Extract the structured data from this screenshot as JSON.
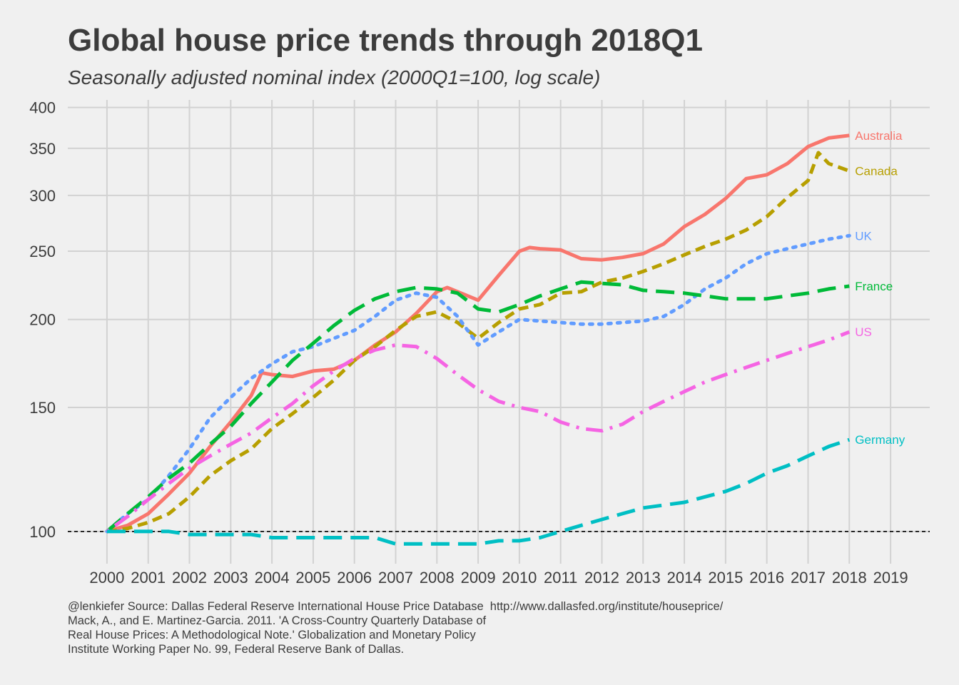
{
  "title": "Global house price trends through 2018Q1",
  "subtitle": "Seasonally adjusted nominal index (2000Q1=100, log scale)",
  "caption": [
    "@lenkiefer Source: Dallas Federal Reserve International House Price Database  http://www.dallasfed.org/institute/houseprice/",
    "Mack, A., and E. Martinez-Garcia. 2011. 'A Cross-Country Quarterly Database of",
    "Real House Prices: A Methodological Note.' Globalization and Monetary Policy",
    "Institute Working Paper No. 99, Federal Reserve Bank of Dallas."
  ],
  "chart_data": {
    "type": "line",
    "title": "Global house price trends through 2018Q1",
    "subtitle": "Seasonally adjusted nominal index (2000Q1=100, log scale)",
    "xlabel": "",
    "ylabel": "",
    "y_scale": "log",
    "xlim": [
      2000,
      2019
    ],
    "ylim": [
      90,
      410
    ],
    "x_ticks": [
      2000,
      2001,
      2002,
      2003,
      2004,
      2005,
      2006,
      2007,
      2008,
      2009,
      2010,
      2011,
      2012,
      2013,
      2014,
      2015,
      2016,
      2017,
      2018,
      2019
    ],
    "y_ticks": [
      100,
      150,
      200,
      250,
      300,
      350,
      400
    ],
    "grid": true,
    "legend": "direct labels at line ends",
    "reference_line": {
      "y": 100,
      "style": "dashed",
      "color": "#000000"
    },
    "series": [
      {
        "name": "Australia",
        "color": "#f8766d",
        "dash": "solid",
        "points": [
          [
            2000,
            100
          ],
          [
            2000.5,
            102
          ],
          [
            2001,
            106
          ],
          [
            2001.5,
            113
          ],
          [
            2002,
            121
          ],
          [
            2002.5,
            132
          ],
          [
            2003,
            143
          ],
          [
            2003.5,
            156
          ],
          [
            2003.75,
            168
          ],
          [
            2004,
            167
          ],
          [
            2004.5,
            166
          ],
          [
            2005,
            169
          ],
          [
            2005.5,
            170
          ],
          [
            2006,
            175
          ],
          [
            2006.5,
            184
          ],
          [
            2007,
            192
          ],
          [
            2007.5,
            204
          ],
          [
            2008,
            219
          ],
          [
            2008.25,
            222
          ],
          [
            2008.5,
            219
          ],
          [
            2009,
            213
          ],
          [
            2009.5,
            231
          ],
          [
            2010,
            250
          ],
          [
            2010.25,
            253
          ],
          [
            2010.5,
            252
          ],
          [
            2011,
            251
          ],
          [
            2011.5,
            244
          ],
          [
            2012,
            243
          ],
          [
            2012.5,
            245
          ],
          [
            2013,
            248
          ],
          [
            2013.5,
            256
          ],
          [
            2014,
            271
          ],
          [
            2014.5,
            282
          ],
          [
            2015,
            297
          ],
          [
            2015.5,
            317
          ],
          [
            2016,
            321
          ],
          [
            2016.5,
            333
          ],
          [
            2017,
            352
          ],
          [
            2017.5,
            362
          ],
          [
            2018,
            365
          ]
        ]
      },
      {
        "name": "Canada",
        "color": "#b79f00",
        "dash": "dashed",
        "points": [
          [
            2000,
            100
          ],
          [
            2000.5,
            101
          ],
          [
            2001,
            103
          ],
          [
            2001.5,
            106
          ],
          [
            2002,
            112
          ],
          [
            2002.5,
            120
          ],
          [
            2003,
            126
          ],
          [
            2003.5,
            131
          ],
          [
            2004,
            140
          ],
          [
            2004.5,
            147
          ],
          [
            2005,
            155
          ],
          [
            2005.5,
            164
          ],
          [
            2006,
            175
          ],
          [
            2006.5,
            183
          ],
          [
            2007,
            193
          ],
          [
            2007.5,
            202
          ],
          [
            2008,
            205
          ],
          [
            2008.5,
            198
          ],
          [
            2009,
            188
          ],
          [
            2009.5,
            198
          ],
          [
            2010,
            207
          ],
          [
            2010.5,
            210
          ],
          [
            2011,
            218
          ],
          [
            2011.5,
            219
          ],
          [
            2012,
            226
          ],
          [
            2012.5,
            229
          ],
          [
            2013,
            234
          ],
          [
            2013.5,
            240
          ],
          [
            2014,
            247
          ],
          [
            2014.5,
            254
          ],
          [
            2015,
            260
          ],
          [
            2015.5,
            268
          ],
          [
            2016,
            280
          ],
          [
            2016.5,
            298
          ],
          [
            2017,
            315
          ],
          [
            2017.25,
            345
          ],
          [
            2017.5,
            333
          ],
          [
            2018,
            325
          ]
        ]
      },
      {
        "name": "UK",
        "color": "#619cff",
        "dash": "dotted",
        "points": [
          [
            2000,
            100
          ],
          [
            2000.5,
            106
          ],
          [
            2001,
            111
          ],
          [
            2001.5,
            120
          ],
          [
            2002,
            131
          ],
          [
            2002.5,
            145
          ],
          [
            2003,
            155
          ],
          [
            2003.5,
            165
          ],
          [
            2004,
            173
          ],
          [
            2004.5,
            180
          ],
          [
            2005,
            183
          ],
          [
            2005.5,
            188
          ],
          [
            2006,
            193
          ],
          [
            2006.5,
            202
          ],
          [
            2007,
            213
          ],
          [
            2007.5,
            218
          ],
          [
            2008,
            215
          ],
          [
            2008.5,
            202
          ],
          [
            2009,
            184
          ],
          [
            2009.5,
            192
          ],
          [
            2010,
            200
          ],
          [
            2010.5,
            199
          ],
          [
            2011,
            198
          ],
          [
            2011.5,
            197
          ],
          [
            2012,
            197
          ],
          [
            2012.5,
            198
          ],
          [
            2013,
            199
          ],
          [
            2013.5,
            202
          ],
          [
            2014,
            210
          ],
          [
            2014.5,
            221
          ],
          [
            2015,
            229
          ],
          [
            2015.5,
            240
          ],
          [
            2016,
            248
          ],
          [
            2016.5,
            252
          ],
          [
            2017,
            256
          ],
          [
            2017.5,
            260
          ],
          [
            2018,
            263
          ]
        ]
      },
      {
        "name": "France",
        "color": "#00ba38",
        "dash": "longdash",
        "points": [
          [
            2000,
            100
          ],
          [
            2000.5,
            106
          ],
          [
            2001,
            112
          ],
          [
            2001.5,
            119
          ],
          [
            2002,
            125
          ],
          [
            2002.5,
            133
          ],
          [
            2003,
            141
          ],
          [
            2003.5,
            152
          ],
          [
            2004,
            163
          ],
          [
            2004.5,
            175
          ],
          [
            2005,
            185
          ],
          [
            2005.5,
            196
          ],
          [
            2006,
            206
          ],
          [
            2006.5,
            214
          ],
          [
            2007,
            219
          ],
          [
            2007.5,
            222
          ],
          [
            2008,
            221
          ],
          [
            2008.5,
            218
          ],
          [
            2009,
            207
          ],
          [
            2009.5,
            205
          ],
          [
            2010,
            210
          ],
          [
            2010.5,
            216
          ],
          [
            2011,
            221
          ],
          [
            2011.5,
            226
          ],
          [
            2012,
            225
          ],
          [
            2012.5,
            224
          ],
          [
            2013,
            220
          ],
          [
            2013.5,
            219
          ],
          [
            2014,
            218
          ],
          [
            2014.5,
            216
          ],
          [
            2015,
            214
          ],
          [
            2015.5,
            214
          ],
          [
            2016,
            214
          ],
          [
            2016.5,
            216
          ],
          [
            2017,
            218
          ],
          [
            2017.5,
            221
          ],
          [
            2018,
            223
          ]
        ]
      },
      {
        "name": "US",
        "color": "#f564e3",
        "dash": "dotdash",
        "points": [
          [
            2000,
            100
          ],
          [
            2000.5,
            105
          ],
          [
            2001,
            111
          ],
          [
            2001.5,
            117
          ],
          [
            2002,
            123
          ],
          [
            2002.5,
            128
          ],
          [
            2003,
            133
          ],
          [
            2003.5,
            138
          ],
          [
            2004,
            145
          ],
          [
            2004.5,
            152
          ],
          [
            2005,
            161
          ],
          [
            2005.5,
            169
          ],
          [
            2006,
            176
          ],
          [
            2006.5,
            181
          ],
          [
            2007,
            184
          ],
          [
            2007.5,
            183
          ],
          [
            2008,
            176
          ],
          [
            2008.5,
            167
          ],
          [
            2009,
            159
          ],
          [
            2009.5,
            153
          ],
          [
            2010,
            150
          ],
          [
            2010.5,
            148
          ],
          [
            2011,
            143
          ],
          [
            2011.5,
            140
          ],
          [
            2012,
            139
          ],
          [
            2012.5,
            142
          ],
          [
            2013,
            148
          ],
          [
            2013.5,
            153
          ],
          [
            2014,
            158
          ],
          [
            2014.5,
            163
          ],
          [
            2015,
            167
          ],
          [
            2015.5,
            171
          ],
          [
            2016,
            175
          ],
          [
            2016.5,
            179
          ],
          [
            2017,
            183
          ],
          [
            2017.5,
            187
          ],
          [
            2018,
            192
          ]
        ]
      },
      {
        "name": "Germany",
        "color": "#00bfc4",
        "dash": "longdash",
        "points": [
          [
            2000,
            100
          ],
          [
            2000.5,
            100
          ],
          [
            2001,
            100
          ],
          [
            2001.5,
            100
          ],
          [
            2002,
            99
          ],
          [
            2002.5,
            99
          ],
          [
            2003,
            99
          ],
          [
            2003.5,
            99
          ],
          [
            2004,
            98
          ],
          [
            2004.5,
            98
          ],
          [
            2005,
            98
          ],
          [
            2005.5,
            98
          ],
          [
            2006,
            98
          ],
          [
            2006.5,
            98
          ],
          [
            2007,
            96
          ],
          [
            2007.5,
            96
          ],
          [
            2008,
            96
          ],
          [
            2008.5,
            96
          ],
          [
            2009,
            96
          ],
          [
            2009.5,
            97
          ],
          [
            2010,
            97
          ],
          [
            2010.5,
            98
          ],
          [
            2011,
            100
          ],
          [
            2011.5,
            102
          ],
          [
            2012,
            104
          ],
          [
            2012.5,
            106
          ],
          [
            2013,
            108
          ],
          [
            2013.5,
            109
          ],
          [
            2014,
            110
          ],
          [
            2014.5,
            112
          ],
          [
            2015,
            114
          ],
          [
            2015.5,
            117
          ],
          [
            2016,
            121
          ],
          [
            2016.5,
            124
          ],
          [
            2017,
            128
          ],
          [
            2017.5,
            132
          ],
          [
            2018,
            135
          ]
        ]
      }
    ]
  }
}
